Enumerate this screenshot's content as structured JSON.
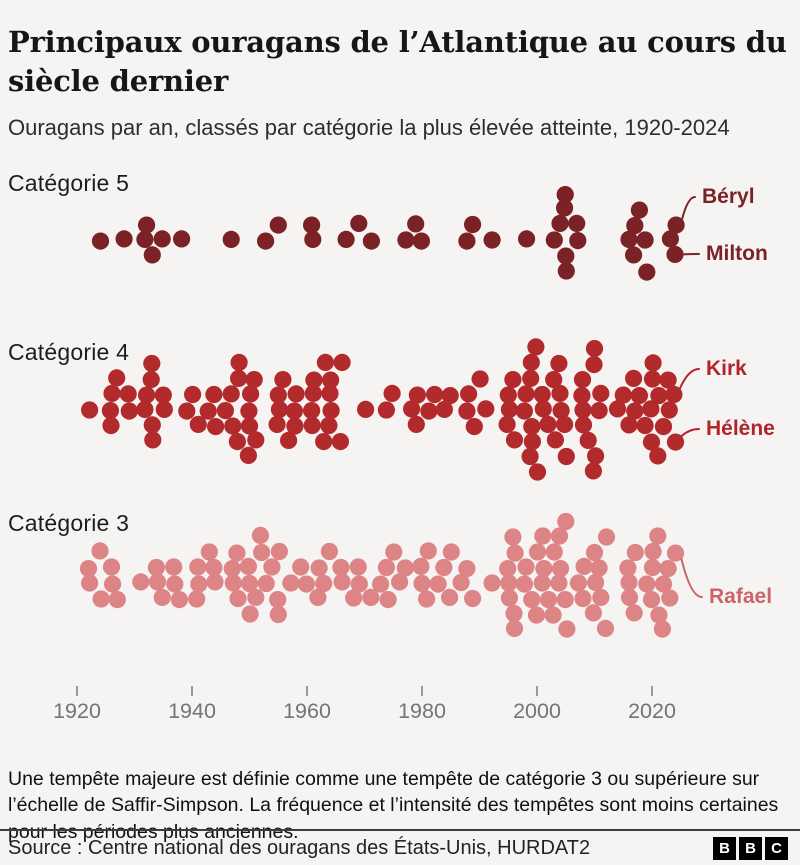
{
  "header": {
    "title": "Principaux ouragans de l’Atlantique au cours du siècle dernier",
    "subtitle": "Ouragans par an, classés par catégorie la plus élevée atteinte, 1920-2024"
  },
  "colors": {
    "background": "#f6f4f3",
    "cat5_dot": "#7a2226",
    "cat4_dot": "#b22a2b",
    "cat3_dot": "#dd8486",
    "label_cat5": "#7a2226",
    "label_cat4": "#b1252a",
    "label_cat3": "#cc6468",
    "axis_text": "#747474",
    "tick_mark": "#999999",
    "divider": "#3d3d3d"
  },
  "chart_data": {
    "type": "scatter",
    "variant": "beeswarm-dot-strip",
    "description": "Un point = un ouragan majeur de l’Atlantique (1920-2024), empilé par année dans trois bandes selon la catégorie maximale atteinte.",
    "title": "Principaux ouragans de l’Atlantique au cours du siècle dernier",
    "xlabel": "",
    "ylabel": "",
    "x_axis": {
      "range": [
        1920,
        2024
      ],
      "ticks": [
        1920,
        1940,
        1960,
        1980,
        2000,
        2020
      ],
      "grid": false
    },
    "legend_position": "row-labels-left",
    "series": [
      {
        "name": "Catégorie 5",
        "color": "#7a2226",
        "points_year_count": [
          [
            1924,
            1
          ],
          [
            1928,
            1
          ],
          [
            1932,
            2
          ],
          [
            1933,
            1
          ],
          [
            1935,
            1
          ],
          [
            1938,
            1
          ],
          [
            1947,
            1
          ],
          [
            1953,
            1
          ],
          [
            1955,
            1
          ],
          [
            1961,
            2
          ],
          [
            1967,
            1
          ],
          [
            1969,
            1
          ],
          [
            1971,
            1
          ],
          [
            1977,
            1
          ],
          [
            1979,
            1
          ],
          [
            1980,
            1
          ],
          [
            1988,
            1
          ],
          [
            1989,
            1
          ],
          [
            1992,
            1
          ],
          [
            1998,
            1
          ],
          [
            2003,
            1
          ],
          [
            2004,
            1
          ],
          [
            2005,
            4
          ],
          [
            2007,
            2
          ],
          [
            2016,
            1
          ],
          [
            2017,
            2
          ],
          [
            2018,
            1
          ],
          [
            2019,
            2
          ],
          [
            2023,
            1
          ],
          [
            2024,
            2
          ]
        ]
      },
      {
        "name": "Catégorie 4",
        "color": "#b22a2b",
        "points_year_count": [
          [
            1922,
            1
          ],
          [
            1926,
            3
          ],
          [
            1927,
            1
          ],
          [
            1929,
            2
          ],
          [
            1932,
            2
          ],
          [
            1933,
            4
          ],
          [
            1935,
            2
          ],
          [
            1939,
            1
          ],
          [
            1940,
            1
          ],
          [
            1941,
            1
          ],
          [
            1943,
            1
          ],
          [
            1944,
            2
          ],
          [
            1946,
            1
          ],
          [
            1947,
            2
          ],
          [
            1948,
            3
          ],
          [
            1950,
            4
          ],
          [
            1951,
            2
          ],
          [
            1955,
            3
          ],
          [
            1956,
            1
          ],
          [
            1957,
            1
          ],
          [
            1958,
            3
          ],
          [
            1961,
            4
          ],
          [
            1963,
            2
          ],
          [
            1964,
            4
          ],
          [
            1966,
            2
          ],
          [
            1970,
            1
          ],
          [
            1974,
            1
          ],
          [
            1975,
            1
          ],
          [
            1978,
            1
          ],
          [
            1979,
            2
          ],
          [
            1981,
            1
          ],
          [
            1982,
            1
          ],
          [
            1984,
            1
          ],
          [
            1985,
            1
          ],
          [
            1988,
            2
          ],
          [
            1989,
            1
          ],
          [
            1990,
            1
          ],
          [
            1991,
            1
          ],
          [
            1995,
            3
          ],
          [
            1996,
            2
          ],
          [
            1998,
            2
          ],
          [
            1999,
            5
          ],
          [
            2000,
            2
          ],
          [
            2001,
            2
          ],
          [
            2002,
            1
          ],
          [
            2003,
            2
          ],
          [
            2004,
            3
          ],
          [
            2005,
            2
          ],
          [
            2008,
            4
          ],
          [
            2009,
            1
          ],
          [
            2010,
            4
          ],
          [
            2011,
            2
          ],
          [
            2014,
            1
          ],
          [
            2015,
            1
          ],
          [
            2016,
            1
          ],
          [
            2017,
            2
          ],
          [
            2018,
            1
          ],
          [
            2019,
            1
          ],
          [
            2020,
            4
          ],
          [
            2021,
            2
          ],
          [
            2022,
            1
          ],
          [
            2023,
            2
          ],
          [
            2024,
            2
          ]
        ]
      },
      {
        "name": "Catégorie 3",
        "color": "#dd8486",
        "points_year_count": [
          [
            1922,
            2
          ],
          [
            1924,
            2
          ],
          [
            1926,
            2
          ],
          [
            1927,
            1
          ],
          [
            1931,
            1
          ],
          [
            1934,
            2
          ],
          [
            1935,
            1
          ],
          [
            1937,
            2
          ],
          [
            1938,
            1
          ],
          [
            1941,
            3
          ],
          [
            1943,
            1
          ],
          [
            1944,
            2
          ],
          [
            1947,
            2
          ],
          [
            1948,
            2
          ],
          [
            1950,
            3
          ],
          [
            1951,
            1
          ],
          [
            1952,
            2
          ],
          [
            1953,
            1
          ],
          [
            1954,
            1
          ],
          [
            1955,
            3
          ],
          [
            1957,
            1
          ],
          [
            1959,
            1
          ],
          [
            1960,
            1
          ],
          [
            1962,
            2
          ],
          [
            1963,
            1
          ],
          [
            1964,
            1
          ],
          [
            1966,
            2
          ],
          [
            1968,
            1
          ],
          [
            1969,
            2
          ],
          [
            1971,
            1
          ],
          [
            1973,
            1
          ],
          [
            1974,
            2
          ],
          [
            1975,
            1
          ],
          [
            1976,
            1
          ],
          [
            1977,
            1
          ],
          [
            1980,
            2
          ],
          [
            1981,
            2
          ],
          [
            1983,
            1
          ],
          [
            1984,
            1
          ],
          [
            1985,
            2
          ],
          [
            1987,
            1
          ],
          [
            1988,
            1
          ],
          [
            1989,
            1
          ],
          [
            1992,
            1
          ],
          [
            1995,
            3
          ],
          [
            1996,
            4
          ],
          [
            1998,
            2
          ],
          [
            1999,
            1
          ],
          [
            2000,
            2
          ],
          [
            2001,
            3
          ],
          [
            2002,
            1
          ],
          [
            2003,
            2
          ],
          [
            2004,
            3
          ],
          [
            2005,
            3
          ],
          [
            2007,
            1
          ],
          [
            2008,
            2
          ],
          [
            2010,
            3
          ],
          [
            2011,
            2
          ],
          [
            2012,
            2
          ],
          [
            2016,
            3
          ],
          [
            2017,
            2
          ],
          [
            2019,
            1
          ],
          [
            2020,
            3
          ],
          [
            2021,
            2
          ],
          [
            2022,
            2
          ],
          [
            2023,
            2
          ],
          [
            2024,
            1
          ]
        ]
      }
    ],
    "annotations": [
      {
        "series": "Catégorie 5",
        "year": 2024,
        "position": "top",
        "label": "Béryl",
        "color": "#7a2226"
      },
      {
        "series": "Catégorie 5",
        "year": 2024,
        "position": "bottom",
        "label": "Milton",
        "color": "#7a2226"
      },
      {
        "series": "Catégorie 4",
        "year": 2024,
        "position": "top",
        "label": "Kirk",
        "color": "#b1252a"
      },
      {
        "series": "Catégorie 4",
        "year": 2024,
        "position": "bottom",
        "label": "Hélène",
        "color": "#b1252a"
      },
      {
        "series": "Catégorie 3",
        "year": 2024,
        "position": "only",
        "label": "Rafael",
        "color": "#cc6468"
      }
    ]
  },
  "footer": {
    "note": "Une tempête majeure est définie comme une tempête de catégorie 3 ou supérieure sur l’échelle de Saffir-Simpson. La fréquence et l’intensité des tempêtes sont moins certaines pour les périodes plus anciennes.",
    "source": "Source : Centre national des ouragans des États-Unis, HURDAT2",
    "logo": [
      "B",
      "B",
      "C"
    ]
  }
}
